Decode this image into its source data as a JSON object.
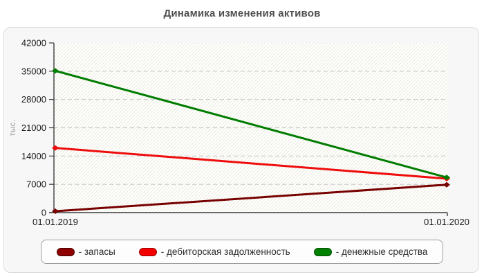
{
  "chart_data": {
    "type": "line",
    "title": "Динамика изменения активов",
    "xlabel": "",
    "ylabel": "тыс.",
    "categories": [
      "01.01.2019",
      "01.01.2020"
    ],
    "series": [
      {
        "name": "запасы",
        "color": "#770000",
        "swatch_fill": "#8e0000",
        "swatch_border": "#4a0000",
        "values": [
          350,
          6900
        ]
      },
      {
        "name": "дебиторская задолженность",
        "color": "#ee0c0c",
        "swatch_fill": "#f50000",
        "swatch_border": "#9b0000",
        "values": [
          16000,
          8400
        ]
      },
      {
        "name": "денежные средства",
        "color": "#007c00",
        "swatch_fill": "#008000",
        "swatch_border": "#004d00",
        "values": [
          35100,
          8700
        ]
      }
    ],
    "ylim": [
      0,
      42000
    ],
    "ytick_step": 7000,
    "yticks": [
      0,
      7000,
      14000,
      21000,
      28000,
      35000,
      42000
    ],
    "grid": "horizontal-dashed",
    "legend_position": "bottom",
    "legend_labels": [
      "- запасы",
      "- дебиторская задолженность",
      "- денежные средства"
    ]
  }
}
